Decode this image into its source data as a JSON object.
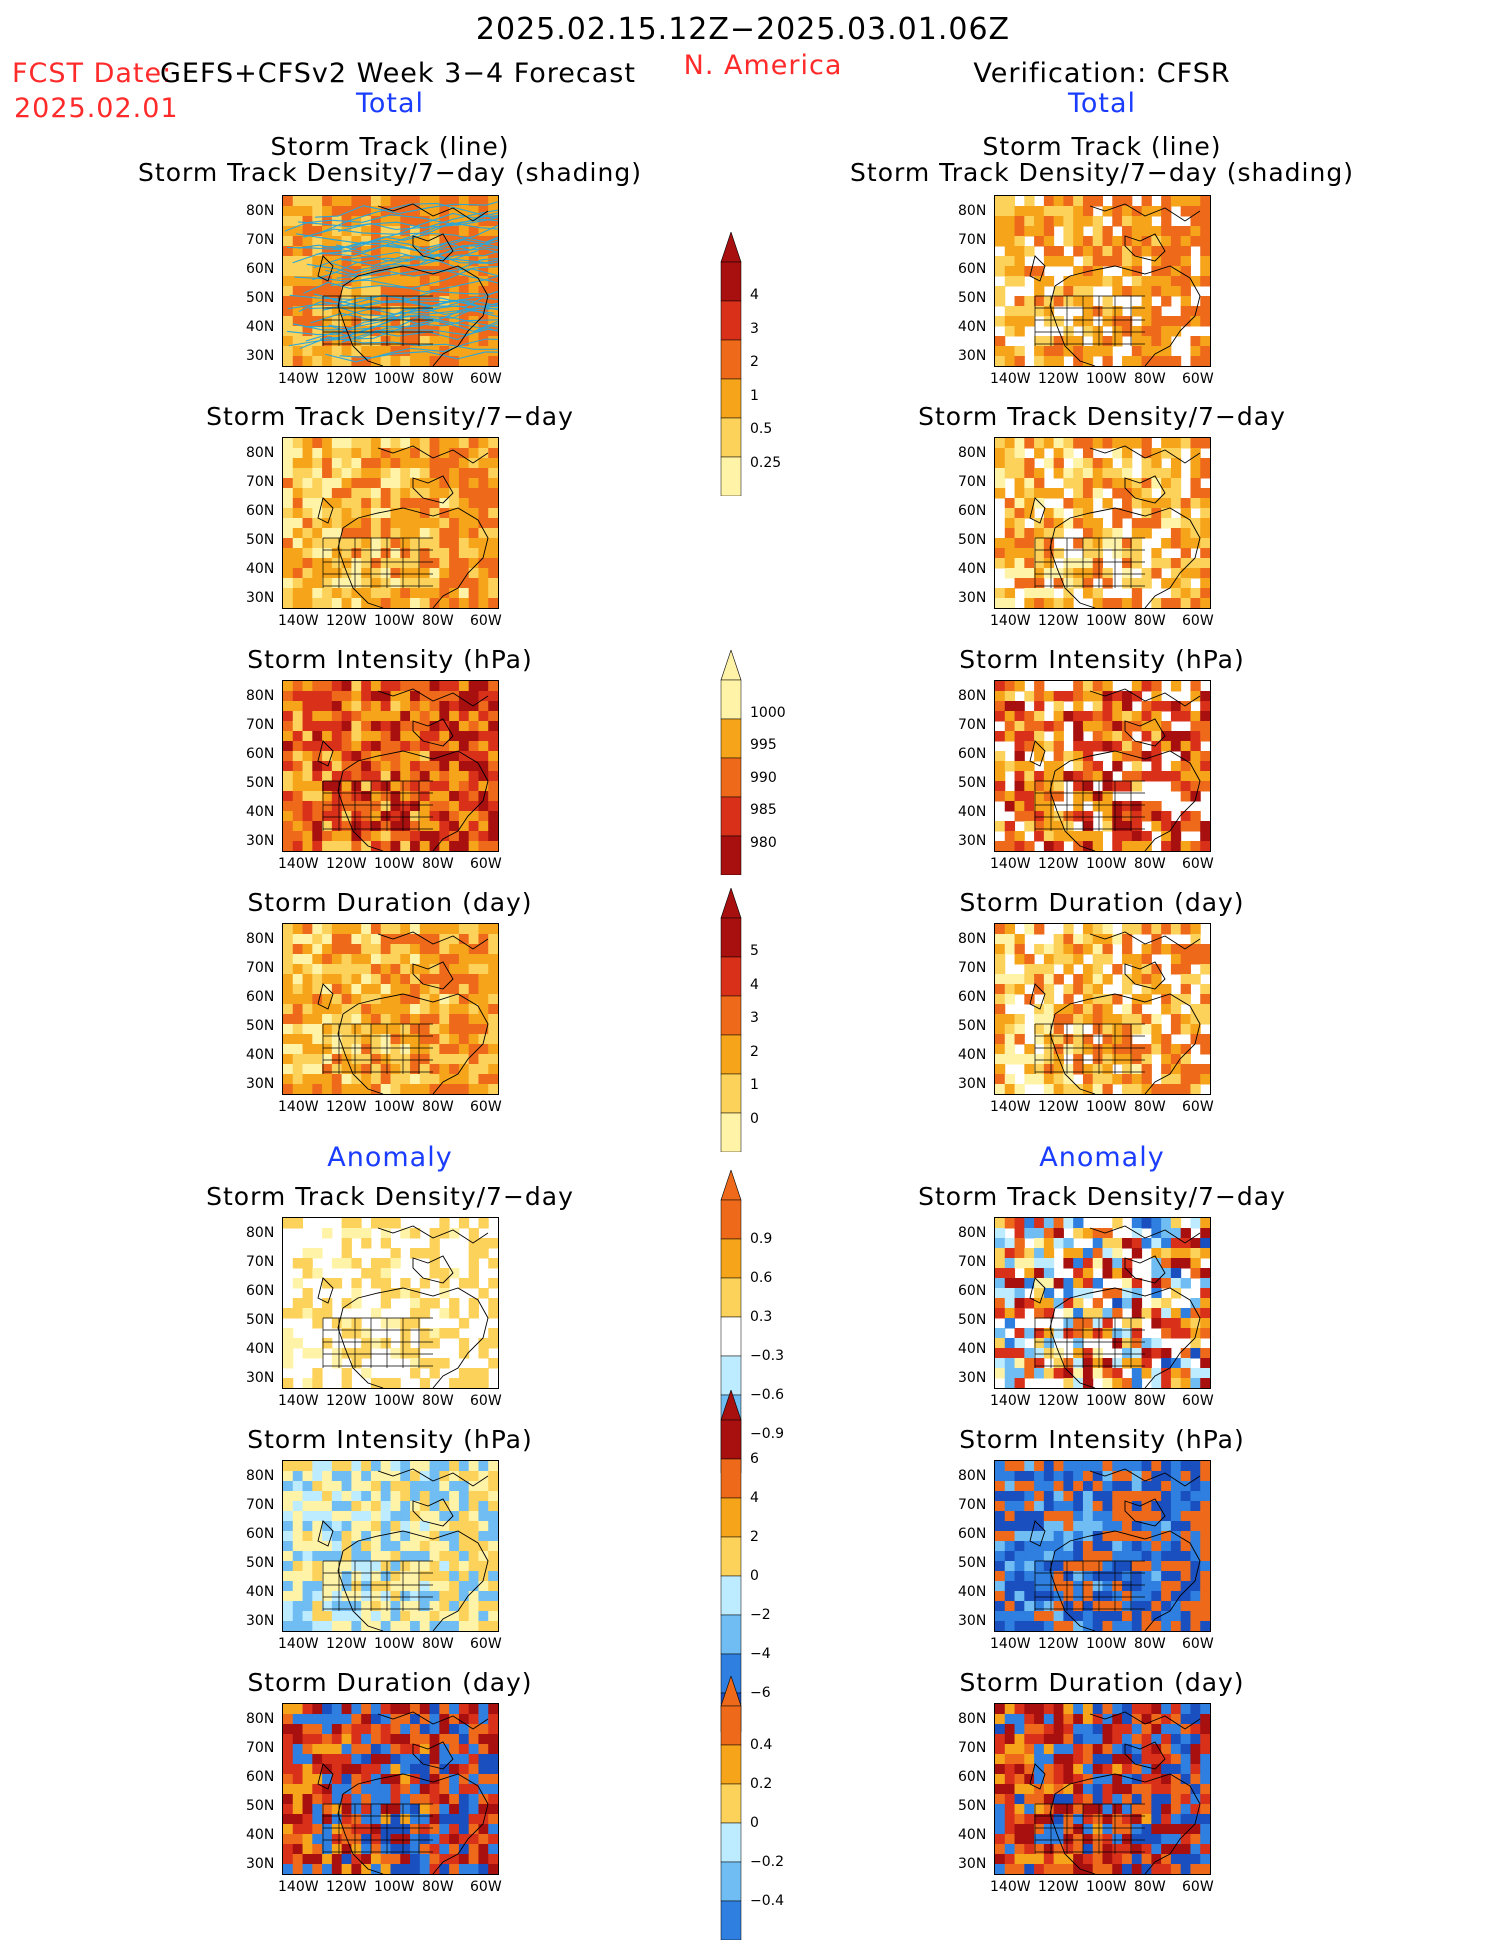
{
  "header": {
    "date_range": "2025.02.15.12Z−2025.03.01.06Z",
    "fcst_label": "FCST Date:",
    "fcst_date": "2025.02.01",
    "model": "GEFS+CFSv2 Week 3−4 Forecast",
    "region": "N. America",
    "verification": "Verification: CFSR"
  },
  "sections": {
    "total_left": "Total",
    "total_right": "Total",
    "anomaly_left": "Anomaly",
    "anomaly_right": "Anomaly"
  },
  "panel_titles": {
    "track_line": "Storm Track (line)",
    "track_density_shading": "Storm Track Density/7−day (shading)",
    "track_density": "Storm Track Density/7−day",
    "intensity": "Storm Intensity (hPa)",
    "duration": "Storm Duration (day)"
  },
  "axes": {
    "lat_ticks": [
      "80N",
      "70N",
      "60N",
      "50N",
      "40N",
      "30N"
    ],
    "lon_ticks": [
      "140W",
      "120W",
      "100W",
      "80W",
      "60W"
    ]
  },
  "colorbars": {
    "density_total": [
      "4",
      "3",
      "2",
      "1",
      "0.5",
      "0.25"
    ],
    "intensity_total": [
      "1000",
      "995",
      "990",
      "985",
      "980"
    ],
    "duration_total": [
      "5",
      "4",
      "3",
      "2",
      "1",
      "0"
    ],
    "density_anomaly": [
      "0.9",
      "0.6",
      "0.3",
      "−0.3",
      "−0.6",
      "−0.9"
    ],
    "intensity_anomaly": [
      "6",
      "4",
      "2",
      "0",
      "−2",
      "−4",
      "−6"
    ],
    "duration_anomaly": [
      "0.4",
      "0.2",
      "0",
      "−0.2",
      "−0.4"
    ]
  },
  "colors": {
    "header_red": "#ff2a2a",
    "section_blue": "#1a3cff",
    "warm_1": "#fff3a8",
    "warm_2": "#fdd25a",
    "warm_3": "#f6a51a",
    "warm_4": "#ee6a1a",
    "warm_5": "#d9301a",
    "warm_6": "#a80f0f",
    "cool_1": "#bdebff",
    "cool_2": "#6fbdf2",
    "cool_3": "#2e7fdf",
    "cool_4": "#1a4fc0",
    "track_line": "#2aa6d9"
  }
}
